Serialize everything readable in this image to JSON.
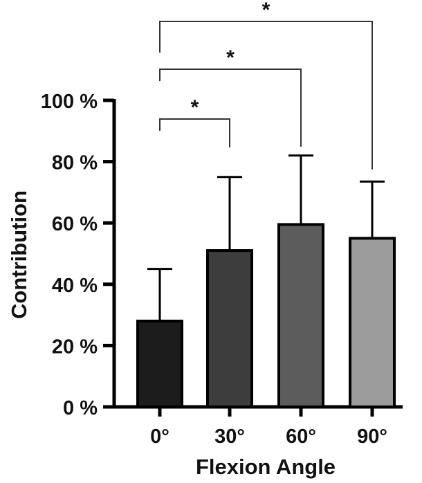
{
  "chart_data": {
    "type": "bar",
    "title": "",
    "xlabel": "Flexion Angle",
    "ylabel": "Contribution",
    "categories": [
      "0°",
      "30°",
      "60°",
      "90°"
    ],
    "values": [
      28,
      51,
      59.5,
      55
    ],
    "error_upper": [
      45,
      75,
      82,
      73.5
    ],
    "ylim": [
      0,
      100
    ],
    "yticks": [
      0,
      20,
      40,
      60,
      80,
      100
    ],
    "ytick_labels": [
      "0 %",
      "20 %",
      "40 %",
      "60 %",
      "80 %",
      "100 %"
    ],
    "grid": false,
    "colors": [
      "#1c1c1c",
      "#3d3d3d",
      "#5c5c5c",
      "#9c9c9c"
    ],
    "significance": [
      {
        "from": "0°",
        "to": "30°",
        "label": "*"
      },
      {
        "from": "0°",
        "to": "60°",
        "label": "*"
      },
      {
        "from": "0°",
        "to": "90°",
        "label": "*"
      }
    ]
  }
}
